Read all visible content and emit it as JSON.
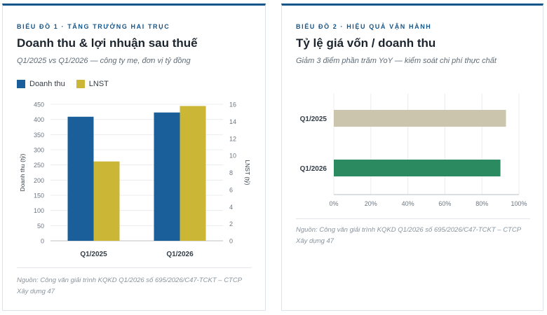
{
  "colors": {
    "accent": "#14558a",
    "revenue": "#1a5f99",
    "profit": "#cbb636",
    "bar_2025": "#ccc5ad",
    "bar_2026": "#2b8a5f"
  },
  "chart1": {
    "eyebrow": "Biểu đồ 1 · Tăng trưởng hai trục",
    "title": "Doanh thu & lợi nhuận sau thuế",
    "subtitle": "Q1/2025 vs Q1/2026 — công ty mẹ, đơn vị tỷ đồng",
    "source_line1": "Nguồn: Công văn giải trình KQKD Q1/2026 số 695/2026/C47-TCKT – CTCP",
    "source_line2": "Xây dựng 47"
  },
  "chart2": {
    "eyebrow": "Biểu đồ 2 · Hiệu quả vận hành",
    "title": "Tỷ lệ giá vốn / doanh thu",
    "subtitle": "Giảm 3 điểm phần trăm YoY — kiểm soát chi phí thực chất",
    "source_line1": "Nguồn: Công văn giải trình KQKD Q1/2026 số 695/2026/C47-TCKT – CTCP",
    "source_line2": "Xây dựng 47"
  },
  "chart_data": [
    {
      "type": "bar",
      "categories": [
        "Q1/2025",
        "Q1/2026"
      ],
      "series": [
        {
          "name": "Doanh thu",
          "axis": "left",
          "values": [
            409,
            423
          ]
        },
        {
          "name": "LNST",
          "axis": "right",
          "values": [
            9.3,
            15.8
          ]
        }
      ],
      "ylabel": "Doanh thu (tỷ)",
      "ylabel_right": "LNST (tỷ)",
      "ylim": [
        0,
        450
      ],
      "ylim_right": [
        0,
        16
      ],
      "yticks": [
        0,
        50,
        100,
        150,
        200,
        250,
        300,
        350,
        400,
        450
      ],
      "yticks_right": [
        0,
        2,
        4,
        6,
        8,
        10,
        12,
        14,
        16
      ],
      "grid": true,
      "legend": "top-left"
    },
    {
      "type": "bar",
      "orientation": "horizontal",
      "categories": [
        "Q1/2025",
        "Q1/2026"
      ],
      "values": [
        93,
        90
      ],
      "xlim": [
        0,
        100
      ],
      "xticks": [
        "0%",
        "20%",
        "40%",
        "60%",
        "80%",
        "100%"
      ],
      "grid": true
    }
  ]
}
